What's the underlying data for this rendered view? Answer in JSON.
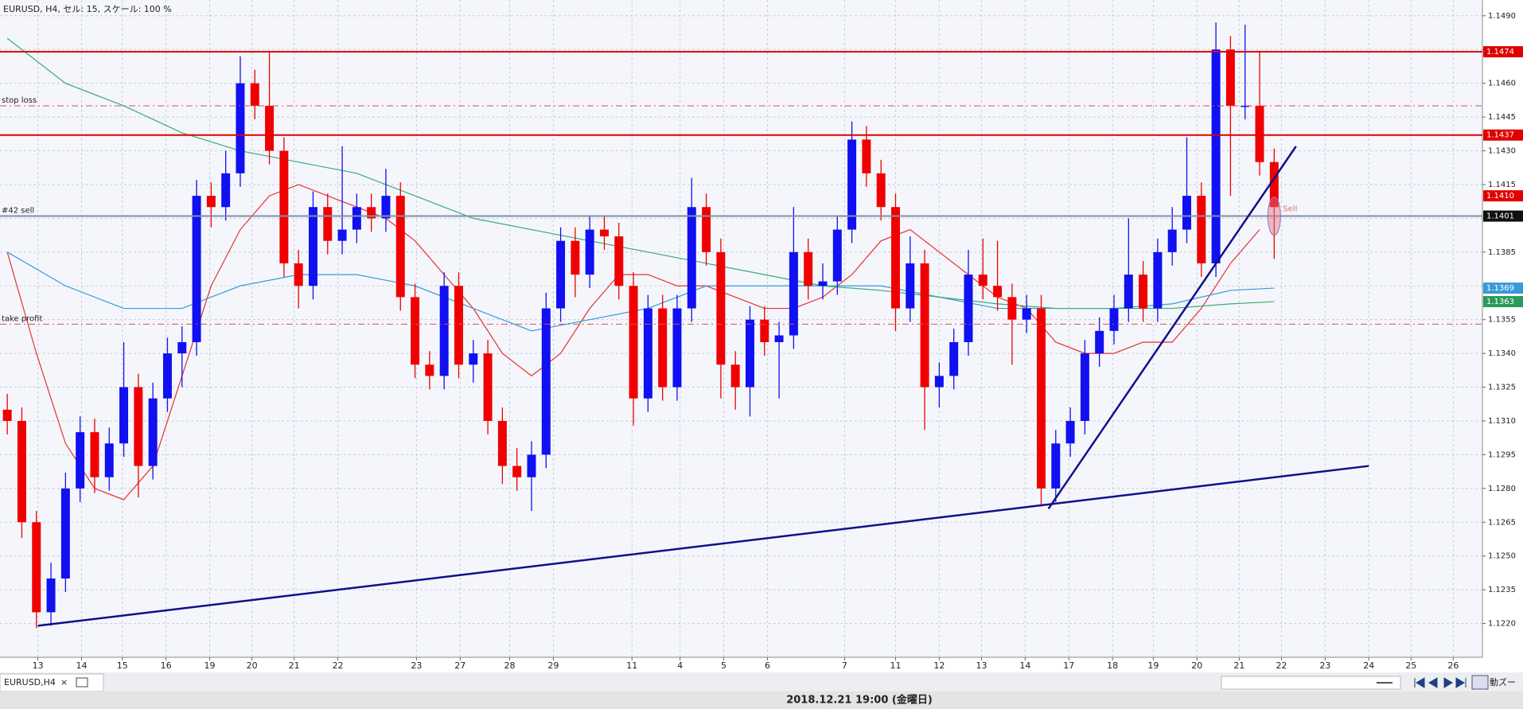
{
  "header": {
    "title": "EURUSD, H4, セル: 15, スケール: 100 %"
  },
  "tab": {
    "label": "EURUSD,H4",
    "close": "×"
  },
  "status": {
    "text": "2018.12.21 19:00 (金曜日)",
    "zoom": "動ズー"
  },
  "chart_data": {
    "type": "candlestick",
    "up_color": "#1010f0",
    "down_color": "#f00000",
    "xlim": [
      -0.5,
      101.3
    ],
    "ylim": [
      1.1205,
      1.1497
    ],
    "xticks": [
      {
        "value": 2.1,
        "label": "13"
      },
      {
        "value": 5.1,
        "label": "14"
      },
      {
        "value": 7.9,
        "label": "15"
      },
      {
        "value": 10.9,
        "label": "16"
      },
      {
        "value": 13.9,
        "label": "19"
      },
      {
        "value": 16.8,
        "label": "20"
      },
      {
        "value": 19.7,
        "label": "21"
      },
      {
        "value": 22.7,
        "label": "22"
      },
      {
        "value": 28.1,
        "label": "23"
      },
      {
        "value": 31.1,
        "label": "27"
      },
      {
        "value": 34.5,
        "label": "28"
      },
      {
        "value": 37.5,
        "label": "29"
      },
      {
        "value": 42.9,
        "label": "11"
      },
      {
        "value": 46.2,
        "label": "4"
      },
      {
        "value": 49.2,
        "label": "5"
      },
      {
        "value": 52.2,
        "label": "6"
      },
      {
        "value": 57.5,
        "label": "7"
      },
      {
        "value": 61,
        "label": "11"
      },
      {
        "value": 64,
        "label": "12"
      },
      {
        "value": 66.9,
        "label": "13"
      },
      {
        "value": 69.9,
        "label": "14"
      },
      {
        "value": 72.9,
        "label": "17"
      },
      {
        "value": 75.9,
        "label": "18"
      },
      {
        "value": 78.7,
        "label": "19"
      },
      {
        "value": 81.7,
        "label": "20"
      },
      {
        "value": 84.6,
        "label": "21"
      },
      {
        "value": 87.5,
        "label": "22"
      },
      {
        "value": 90.5,
        "label": "23"
      },
      {
        "value": 93.5,
        "label": "24"
      },
      {
        "value": 96.4,
        "label": "25"
      },
      {
        "value": 99.3,
        "label": "26"
      }
    ],
    "yticks": [
      {
        "value": 1.122,
        "label": "1.1220"
      },
      {
        "value": 1.1235,
        "label": "1.1235"
      },
      {
        "value": 1.125,
        "label": "1.1250"
      },
      {
        "value": 1.1265,
        "label": "1.1265"
      },
      {
        "value": 1.128,
        "label": "1.1280"
      },
      {
        "value": 1.1295,
        "label": "1.1295"
      },
      {
        "value": 1.131,
        "label": "1.1310"
      },
      {
        "value": 1.1325,
        "label": "1.1325"
      },
      {
        "value": 1.134,
        "label": "1.1340"
      },
      {
        "value": 1.1355,
        "label": "1.1355"
      },
      {
        "value": 1.137,
        "label": "1.1370"
      },
      {
        "value": 1.1385,
        "label": "1.1385"
      },
      {
        "value": 1.14,
        "label": "1.1400"
      },
      {
        "value": 1.1415,
        "label": "1.1415"
      },
      {
        "value": 1.143,
        "label": "1.1430"
      },
      {
        "value": 1.1445,
        "label": "1.1445"
      },
      {
        "value": 1.146,
        "label": "1.1460"
      },
      {
        "value": 1.1475,
        "label": "1.1475"
      },
      {
        "value": 1.149,
        "label": "1.1490"
      }
    ],
    "grid": true,
    "candles": [
      [
        1.1315,
        1.1322,
        1.1304,
        1.131
      ],
      [
        1.131,
        1.1316,
        1.1258,
        1.1265
      ],
      [
        1.1265,
        1.127,
        1.1218,
        1.1225
      ],
      [
        1.1225,
        1.1247,
        1.1219,
        1.124
      ],
      [
        1.124,
        1.1287,
        1.1234,
        1.128
      ],
      [
        1.128,
        1.1312,
        1.1274,
        1.1305
      ],
      [
        1.1305,
        1.1311,
        1.1278,
        1.1285
      ],
      [
        1.1285,
        1.1307,
        1.1279,
        1.13
      ],
      [
        1.13,
        1.1345,
        1.1294,
        1.1325
      ],
      [
        1.1325,
        1.1331,
        1.1276,
        1.129
      ],
      [
        1.129,
        1.1327,
        1.1284,
        1.132
      ],
      [
        1.132,
        1.1347,
        1.1314,
        1.134
      ],
      [
        1.134,
        1.1352,
        1.1325,
        1.1345
      ],
      [
        1.1345,
        1.1417,
        1.1339,
        1.141
      ],
      [
        1.141,
        1.1416,
        1.1396,
        1.1405
      ],
      [
        1.1405,
        1.143,
        1.1399,
        1.142
      ],
      [
        1.142,
        1.1472,
        1.1414,
        1.146
      ],
      [
        1.146,
        1.1466,
        1.1444,
        1.145
      ],
      [
        1.145,
        1.1474,
        1.1424,
        1.143
      ],
      [
        1.143,
        1.1436,
        1.1374,
        1.138
      ],
      [
        1.138,
        1.1386,
        1.136,
        1.137
      ],
      [
        1.137,
        1.1412,
        1.1364,
        1.1405
      ],
      [
        1.1405,
        1.1411,
        1.1384,
        1.139
      ],
      [
        1.139,
        1.1432,
        1.1384,
        1.1395
      ],
      [
        1.1395,
        1.1411,
        1.1389,
        1.1405
      ],
      [
        1.1405,
        1.1411,
        1.1394,
        1.14
      ],
      [
        1.14,
        1.1422,
        1.1394,
        1.141
      ],
      [
        1.141,
        1.1416,
        1.1359,
        1.1365
      ],
      [
        1.1365,
        1.1371,
        1.1329,
        1.1335
      ],
      [
        1.1335,
        1.1341,
        1.1324,
        1.133
      ],
      [
        1.133,
        1.1376,
        1.1324,
        1.137
      ],
      [
        1.137,
        1.1376,
        1.1329,
        1.1335
      ],
      [
        1.1335,
        1.1346,
        1.1327,
        1.134
      ],
      [
        1.134,
        1.1346,
        1.1304,
        1.131
      ],
      [
        1.131,
        1.1316,
        1.1282,
        1.129
      ],
      [
        1.129,
        1.1298,
        1.1279,
        1.1285
      ],
      [
        1.1285,
        1.1301,
        1.127,
        1.1295
      ],
      [
        1.1295,
        1.1367,
        1.1289,
        1.136
      ],
      [
        1.136,
        1.1396,
        1.1354,
        1.139
      ],
      [
        1.139,
        1.1396,
        1.1365,
        1.1375
      ],
      [
        1.1375,
        1.1401,
        1.1369,
        1.1395
      ],
      [
        1.1395,
        1.1401,
        1.1386,
        1.1392
      ],
      [
        1.1392,
        1.1398,
        1.1364,
        1.137
      ],
      [
        1.137,
        1.1376,
        1.1308,
        1.132
      ],
      [
        1.132,
        1.1366,
        1.1314,
        1.136
      ],
      [
        1.136,
        1.1366,
        1.1319,
        1.1325
      ],
      [
        1.1325,
        1.1366,
        1.1319,
        1.136
      ],
      [
        1.136,
        1.1418,
        1.1354,
        1.1405
      ],
      [
        1.1405,
        1.1411,
        1.1379,
        1.1385
      ],
      [
        1.1385,
        1.1391,
        1.132,
        1.1335
      ],
      [
        1.1335,
        1.1341,
        1.1315,
        1.1325
      ],
      [
        1.1325,
        1.1361,
        1.1312,
        1.1355
      ],
      [
        1.1355,
        1.1361,
        1.1339,
        1.1345
      ],
      [
        1.1345,
        1.1354,
        1.132,
        1.1348
      ],
      [
        1.1348,
        1.1405,
        1.1342,
        1.1385
      ],
      [
        1.1385,
        1.1391,
        1.1364,
        1.137
      ],
      [
        1.137,
        1.138,
        1.1364,
        1.1372
      ],
      [
        1.1372,
        1.1401,
        1.1366,
        1.1395
      ],
      [
        1.1395,
        1.1443,
        1.1389,
        1.1435
      ],
      [
        1.1435,
        1.1441,
        1.1414,
        1.142
      ],
      [
        1.142,
        1.1426,
        1.1399,
        1.1405
      ],
      [
        1.1405,
        1.1411,
        1.135,
        1.136
      ],
      [
        1.136,
        1.1392,
        1.1354,
        1.138
      ],
      [
        1.138,
        1.1386,
        1.1306,
        1.1325
      ],
      [
        1.1325,
        1.1336,
        1.1316,
        1.133
      ],
      [
        1.133,
        1.1351,
        1.1324,
        1.1345
      ],
      [
        1.1345,
        1.1386,
        1.1339,
        1.1375
      ],
      [
        1.1375,
        1.1391,
        1.1364,
        1.137
      ],
      [
        1.137,
        1.139,
        1.1359,
        1.1365
      ],
      [
        1.1365,
        1.1371,
        1.1335,
        1.1355
      ],
      [
        1.1355,
        1.1366,
        1.1349,
        1.136
      ],
      [
        1.136,
        1.1366,
        1.1272,
        1.128
      ],
      [
        1.128,
        1.1306,
        1.1274,
        1.13
      ],
      [
        1.13,
        1.1316,
        1.1294,
        1.131
      ],
      [
        1.131,
        1.1346,
        1.1304,
        1.134
      ],
      [
        1.134,
        1.1356,
        1.1334,
        1.135
      ],
      [
        1.135,
        1.1366,
        1.1344,
        1.136
      ],
      [
        1.136,
        1.14,
        1.1354,
        1.1375
      ],
      [
        1.1375,
        1.1381,
        1.1354,
        1.136
      ],
      [
        1.136,
        1.1391,
        1.1354,
        1.1385
      ],
      [
        1.1385,
        1.1405,
        1.1379,
        1.1395
      ],
      [
        1.1395,
        1.1436,
        1.1389,
        1.141
      ],
      [
        1.141,
        1.1416,
        1.1374,
        1.138
      ],
      [
        1.138,
        1.1487,
        1.1374,
        1.1475
      ],
      [
        1.1475,
        1.1481,
        1.141,
        1.145
      ],
      [
        1.145,
        1.1486,
        1.1444,
        1.145
      ],
      [
        1.145,
        1.1474,
        1.1419,
        1.1425
      ],
      [
        1.1425,
        1.1431,
        1.1382,
        1.1405
      ]
    ],
    "series": [
      {
        "color": "#e83030",
        "x": [
          0,
          2,
          4,
          6,
          8,
          10,
          12,
          14,
          16,
          18,
          20,
          22,
          24,
          26,
          28,
          30,
          32,
          34,
          36,
          38,
          40,
          42,
          44,
          46,
          48,
          50,
          52,
          54,
          56,
          58,
          60,
          62,
          64,
          66,
          68,
          70,
          72,
          74,
          76,
          78,
          80,
          82,
          84,
          86
        ],
        "values": [
          1.1385,
          1.134,
          1.13,
          1.128,
          1.1275,
          1.129,
          1.133,
          1.137,
          1.1395,
          1.141,
          1.1415,
          1.141,
          1.1405,
          1.14,
          1.139,
          1.1375,
          1.136,
          1.134,
          1.133,
          1.134,
          1.136,
          1.1375,
          1.1375,
          1.137,
          1.137,
          1.1365,
          1.136,
          1.136,
          1.1365,
          1.1375,
          1.139,
          1.1395,
          1.1385,
          1.1375,
          1.1365,
          1.136,
          1.1345,
          1.134,
          1.134,
          1.1345,
          1.1345,
          1.136,
          1.138,
          1.1395
        ]
      },
      {
        "color": "#3a9ad8",
        "x": [
          0,
          4,
          8,
          12,
          16,
          20,
          24,
          28,
          32,
          36,
          40,
          44,
          48,
          52,
          56,
          60,
          64,
          68,
          72,
          76,
          80,
          84,
          87
        ],
        "values": [
          1.1385,
          1.137,
          1.136,
          1.136,
          1.137,
          1.1375,
          1.1375,
          1.137,
          1.136,
          1.135,
          1.1355,
          1.136,
          1.137,
          1.137,
          1.137,
          1.137,
          1.1365,
          1.136,
          1.136,
          1.136,
          1.1362,
          1.1368,
          1.1369
        ]
      },
      {
        "color": "#3aaa7a",
        "x": [
          0,
          4,
          8,
          12,
          16,
          20,
          24,
          28,
          32,
          36,
          40,
          44,
          48,
          52,
          56,
          60,
          64,
          68,
          72,
          76,
          80,
          84,
          87
        ],
        "values": [
          1.148,
          1.146,
          1.145,
          1.1438,
          1.143,
          1.1425,
          1.142,
          1.141,
          1.14,
          1.1395,
          1.139,
          1.1385,
          1.138,
          1.1375,
          1.137,
          1.1368,
          1.1365,
          1.1362,
          1.136,
          1.136,
          1.136,
          1.1362,
          1.1363
        ]
      }
    ],
    "levels": [
      {
        "value": 1.1474,
        "label": "1.1474",
        "color": "#e00000",
        "style": "solid"
      },
      {
        "value": 1.1437,
        "label": "1.1437",
        "color": "#e00000",
        "style": "solid"
      },
      {
        "value": 1.145,
        "text": "stop loss",
        "color": "#e05050",
        "style": "dash"
      },
      {
        "value": 1.1353,
        "text": "take profit",
        "color": "#e05050",
        "style": "dash"
      },
      {
        "value": 1.1401,
        "text": "#42 sell",
        "label": "1.1401",
        "color": "#8090a8",
        "style": "solid"
      }
    ],
    "price_tags": [
      {
        "value": 1.141,
        "label": "1.1410",
        "color": "#e00000"
      },
      {
        "value": 1.1369,
        "label": "1.1369",
        "color": "#3a9ad8"
      },
      {
        "value": 1.1363,
        "label": "1.1363",
        "color": "#2a9a5a"
      }
    ],
    "trendlines": [
      {
        "x": [
          2.1,
          93.5
        ],
        "y": [
          1.1219,
          1.129
        ],
        "color": "#10108a"
      },
      {
        "x": [
          71.5,
          88.5
        ],
        "y": [
          1.1271,
          1.1432
        ],
        "color": "#10108a"
      }
    ],
    "marker": {
      "x": 87,
      "value": 1.1401,
      "text": "Sell",
      "color": "#e07080"
    }
  }
}
